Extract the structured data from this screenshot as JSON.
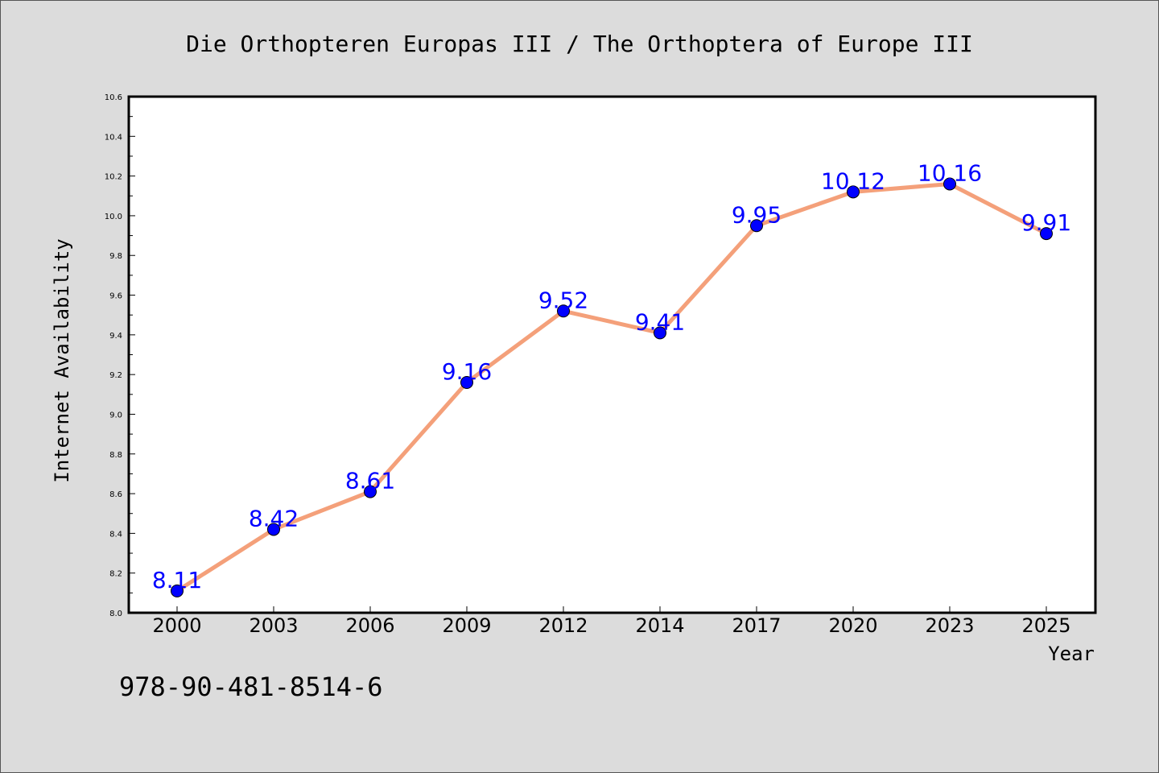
{
  "chart_data": {
    "type": "line",
    "title": "Die Orthopteren Europas III / The Orthoptera of Europe III",
    "xlabel": "Year",
    "ylabel": "Internet Availability",
    "categories": [
      "2000",
      "2003",
      "2006",
      "2009",
      "2012",
      "2014",
      "2017",
      "2020",
      "2023",
      "2025"
    ],
    "series": [
      {
        "values": [
          8.11,
          8.42,
          8.61,
          9.16,
          9.52,
          9.41,
          9.95,
          10.12,
          10.16,
          9.91
        ],
        "line_color": "#f4a07a",
        "marker_color": "#0000ff"
      }
    ],
    "data_labels": [
      "8.11",
      "8.42",
      "8.61",
      "9.16",
      "9.52",
      "9.41",
      "9.95",
      "10.12",
      "10.16",
      "9.91"
    ],
    "ylim": [
      8.0,
      10.6
    ],
    "yticks": [
      "8.0",
      "8.2",
      "8.4",
      "8.6",
      "8.8",
      "9.0",
      "9.2",
      "9.4",
      "9.6",
      "9.8",
      "10.0",
      "10.2",
      "10.4",
      "10.6"
    ],
    "grid": false,
    "legend": "none"
  },
  "footer": {
    "isbn": "978-90-481-8514-6"
  },
  "colors": {
    "background": "#dcdcdc",
    "plot_background": "#ffffff",
    "line": "#f4a07a",
    "marker": "#0000ff",
    "label": "#0000ff"
  }
}
